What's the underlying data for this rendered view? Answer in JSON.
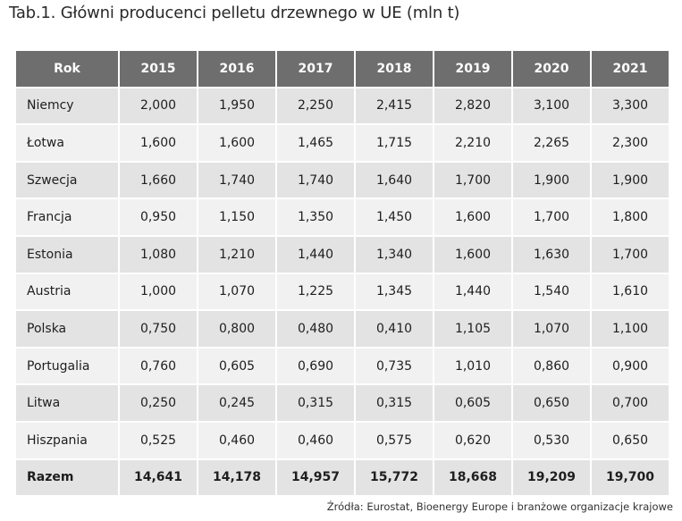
{
  "title": "Tab.1. Główni producenci pelletu drzewnego w UE (mln t)",
  "table": {
    "header": {
      "label": "Rok",
      "years": [
        "2015",
        "2016",
        "2017",
        "2018",
        "2019",
        "2020",
        "2021"
      ]
    },
    "rows": [
      {
        "name": "Niemcy",
        "values": [
          "2,000",
          "1,950",
          "2,250",
          "2,415",
          "2,820",
          "3,100",
          "3,300"
        ]
      },
      {
        "name": "Łotwa",
        "values": [
          "1,600",
          "1,600",
          "1,465",
          "1,715",
          "2,210",
          "2,265",
          "2,300"
        ]
      },
      {
        "name": "Szwecja",
        "values": [
          "1,660",
          "1,740",
          "1,740",
          "1,640",
          "1,700",
          "1,900",
          "1,900"
        ]
      },
      {
        "name": "Francja",
        "values": [
          "0,950",
          "1,150",
          "1,350",
          "1,450",
          "1,600",
          "1,700",
          "1,800"
        ]
      },
      {
        "name": "Estonia",
        "values": [
          "1,080",
          "1,210",
          "1,440",
          "1,340",
          "1,600",
          "1,630",
          "1,700"
        ]
      },
      {
        "name": "Austria",
        "values": [
          "1,000",
          "1,070",
          "1,225",
          "1,345",
          "1,440",
          "1,540",
          "1,610"
        ]
      },
      {
        "name": "Polska",
        "values": [
          "0,750",
          "0,800",
          "0,480",
          "0,410",
          "1,105",
          "1,070",
          "1,100"
        ]
      },
      {
        "name": "Portugalia",
        "values": [
          "0,760",
          "0,605",
          "0,690",
          "0,735",
          "1,010",
          "0,860",
          "0,900"
        ]
      },
      {
        "name": "Litwa",
        "values": [
          "0,250",
          "0,245",
          "0,315",
          "0,315",
          "0,605",
          "0,650",
          "0,700"
        ]
      },
      {
        "name": "Hiszpania",
        "values": [
          "0,525",
          "0,460",
          "0,460",
          "0,575",
          "0,620",
          "0,530",
          "0,650"
        ]
      }
    ],
    "total": {
      "name": "Razem",
      "values": [
        "14,641",
        "14,178",
        "14,957",
        "15,772",
        "18,668",
        "19,209",
        "19,700"
      ]
    }
  },
  "source": "Źródła: Eurostat, Bioenergy Europe i branżowe organizacje krajowe",
  "colors": {
    "header_bg": "#6e6e6e",
    "row_dark": "#e3e3e3",
    "row_light": "#f1f1f1"
  }
}
